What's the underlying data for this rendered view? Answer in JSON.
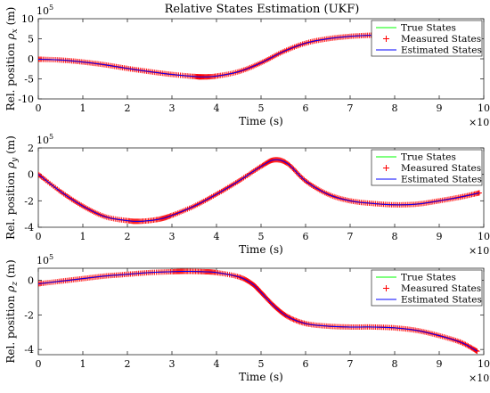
{
  "chart_data": [
    {
      "type": "line",
      "title": "Relative States Estimation (UKF)",
      "xlabel": "Time (s)",
      "ylabel_prefix": "Rel. position ",
      "ylabel_symbol": "ρ",
      "ylabel_subscript": "x",
      "ylabel_suffix": " (m)",
      "x_exponent_base": "×10",
      "x_exponent_power": "5",
      "y_exponent_base": "10",
      "y_exponent_power": "5",
      "xlim": [
        0,
        10
      ],
      "ylim": [
        -10,
        10
      ],
      "xticks": [
        0,
        1,
        2,
        3,
        4,
        5,
        6,
        7,
        8,
        9,
        10
      ],
      "xtick_labels": [
        "0",
        "1",
        "2",
        "3",
        "4",
        "5",
        "6",
        "7",
        "8",
        "9",
        "10"
      ],
      "yticks": [
        -10,
        -5,
        0,
        5,
        10
      ],
      "ytick_labels": [
        "-10",
        "-5",
        "0",
        "5",
        "10"
      ],
      "legend_position": "top-right",
      "x": [
        0,
        0.5,
        1,
        1.5,
        2,
        2.5,
        3,
        3.5,
        3.7,
        4,
        4.5,
        5,
        5.5,
        6,
        6.5,
        7,
        7.5,
        8,
        8.5,
        9,
        9.5,
        9.85
      ],
      "series": [
        {
          "name": "True States",
          "values": [
            -0.1,
            -0.3,
            -0.8,
            -1.5,
            -2.4,
            -3.2,
            -3.9,
            -4.4,
            -4.5,
            -4.3,
            -3.2,
            -1.0,
            1.8,
            3.9,
            5.0,
            5.6,
            5.9,
            6.1,
            6.3,
            6.6,
            7.0,
            7.4
          ]
        },
        {
          "name": "Measured States",
          "values": [
            -0.1,
            -0.3,
            -0.8,
            -1.5,
            -2.4,
            -3.2,
            -3.9,
            -4.4,
            -4.5,
            -4.3,
            -3.2,
            -1.0,
            1.8,
            3.9,
            5.0,
            5.6,
            5.9,
            6.1,
            6.3,
            6.6,
            7.0,
            7.4
          ]
        },
        {
          "name": "Estimated States",
          "values": [
            -0.1,
            -0.3,
            -0.8,
            -1.5,
            -2.4,
            -3.2,
            -3.9,
            -4.4,
            -4.5,
            -4.3,
            -3.2,
            -1.0,
            1.8,
            3.9,
            5.0,
            5.6,
            5.9,
            6.1,
            6.3,
            6.6,
            7.0,
            7.4
          ]
        }
      ],
      "colors": {
        "true": "#00ff00",
        "measured": "#ff0000",
        "estimated": "#0000ff"
      }
    },
    {
      "type": "line",
      "title": "",
      "xlabel": "Time (s)",
      "ylabel_prefix": "Rel. position ",
      "ylabel_symbol": "ρ",
      "ylabel_subscript": "y",
      "ylabel_suffix": " (m)",
      "x_exponent_base": "×10",
      "x_exponent_power": "5",
      "y_exponent_base": "10",
      "y_exponent_power": "5",
      "xlim": [
        0,
        10
      ],
      "ylim": [
        -4,
        2
      ],
      "xticks": [
        0,
        1,
        2,
        3,
        4,
        5,
        6,
        7,
        8,
        9,
        10
      ],
      "xtick_labels": [
        "0",
        "1",
        "2",
        "3",
        "4",
        "5",
        "6",
        "7",
        "8",
        "9",
        "10"
      ],
      "yticks": [
        -4,
        -2,
        0,
        2
      ],
      "ytick_labels": [
        "-4",
        "-2",
        "0",
        "2"
      ],
      "legend_position": "top-right",
      "x": [
        0,
        0.5,
        1,
        1.5,
        2,
        2.3,
        2.7,
        3,
        3.5,
        4,
        4.5,
        5,
        5.3,
        5.6,
        6,
        6.5,
        7,
        7.5,
        8,
        8.5,
        9,
        9.5,
        9.9
      ],
      "series": [
        {
          "name": "True States",
          "values": [
            0.0,
            -1.3,
            -2.4,
            -3.2,
            -3.5,
            -3.55,
            -3.4,
            -3.1,
            -2.4,
            -1.5,
            -0.5,
            0.6,
            1.1,
            0.8,
            -0.5,
            -1.5,
            -2.0,
            -2.2,
            -2.3,
            -2.25,
            -2.0,
            -1.7,
            -1.4
          ]
        },
        {
          "name": "Measured States",
          "values": [
            0.0,
            -1.3,
            -2.4,
            -3.2,
            -3.5,
            -3.55,
            -3.4,
            -3.1,
            -2.4,
            -1.5,
            -0.5,
            0.6,
            1.1,
            0.8,
            -0.5,
            -1.5,
            -2.0,
            -2.2,
            -2.3,
            -2.25,
            -2.0,
            -1.7,
            -1.4
          ]
        },
        {
          "name": "Estimated States",
          "values": [
            0.0,
            -1.3,
            -2.4,
            -3.2,
            -3.5,
            -3.55,
            -3.4,
            -3.1,
            -2.4,
            -1.5,
            -0.5,
            0.6,
            1.1,
            0.8,
            -0.5,
            -1.5,
            -2.0,
            -2.2,
            -2.3,
            -2.25,
            -2.0,
            -1.7,
            -1.4
          ]
        }
      ],
      "colors": {
        "true": "#00ff00",
        "measured": "#ff0000",
        "estimated": "#0000ff"
      }
    },
    {
      "type": "line",
      "title": "",
      "xlabel": "Time (s)",
      "ylabel_prefix": "Rel. position ",
      "ylabel_symbol": "ρ",
      "ylabel_subscript": "z",
      "ylabel_suffix": " (m)",
      "x_exponent_base": "×10",
      "x_exponent_power": "5",
      "y_exponent_base": "10",
      "y_exponent_power": "5",
      "xlim": [
        0,
        10
      ],
      "ylim": [
        -4.3,
        0.7
      ],
      "xticks": [
        0,
        1,
        2,
        3,
        4,
        5,
        6,
        7,
        8,
        9,
        10
      ],
      "xtick_labels": [
        "0",
        "1",
        "2",
        "3",
        "4",
        "5",
        "6",
        "7",
        "8",
        "9",
        "10"
      ],
      "yticks": [
        -4,
        -2,
        0
      ],
      "ytick_labels": [
        "-4",
        "-2",
        "0"
      ],
      "legend_position": "top-right",
      "x": [
        0,
        0.5,
        1,
        1.5,
        2,
        2.5,
        3,
        3.3,
        3.7,
        4,
        4.5,
        4.8,
        5,
        5.3,
        5.6,
        6,
        6.5,
        7,
        7.5,
        8,
        8.5,
        9,
        9.5,
        9.85
      ],
      "series": [
        {
          "name": "True States",
          "values": [
            -0.2,
            -0.05,
            0.1,
            0.25,
            0.35,
            0.45,
            0.5,
            0.52,
            0.5,
            0.45,
            0.2,
            -0.2,
            -0.7,
            -1.5,
            -2.1,
            -2.5,
            -2.65,
            -2.7,
            -2.7,
            -2.75,
            -2.9,
            -3.2,
            -3.6,
            -4.1
          ]
        },
        {
          "name": "Measured States",
          "values": [
            -0.2,
            -0.05,
            0.1,
            0.25,
            0.35,
            0.45,
            0.5,
            0.52,
            0.5,
            0.45,
            0.2,
            -0.2,
            -0.7,
            -1.5,
            -2.1,
            -2.5,
            -2.65,
            -2.7,
            -2.7,
            -2.75,
            -2.9,
            -3.2,
            -3.6,
            -4.1
          ]
        },
        {
          "name": "Estimated States",
          "values": [
            -0.2,
            -0.05,
            0.1,
            0.25,
            0.35,
            0.45,
            0.5,
            0.52,
            0.5,
            0.45,
            0.2,
            -0.2,
            -0.7,
            -1.5,
            -2.1,
            -2.5,
            -2.65,
            -2.7,
            -2.7,
            -2.75,
            -2.9,
            -3.2,
            -3.6,
            -4.1
          ]
        }
      ],
      "colors": {
        "true": "#00ff00",
        "measured": "#ff0000",
        "estimated": "#0000ff"
      }
    }
  ]
}
